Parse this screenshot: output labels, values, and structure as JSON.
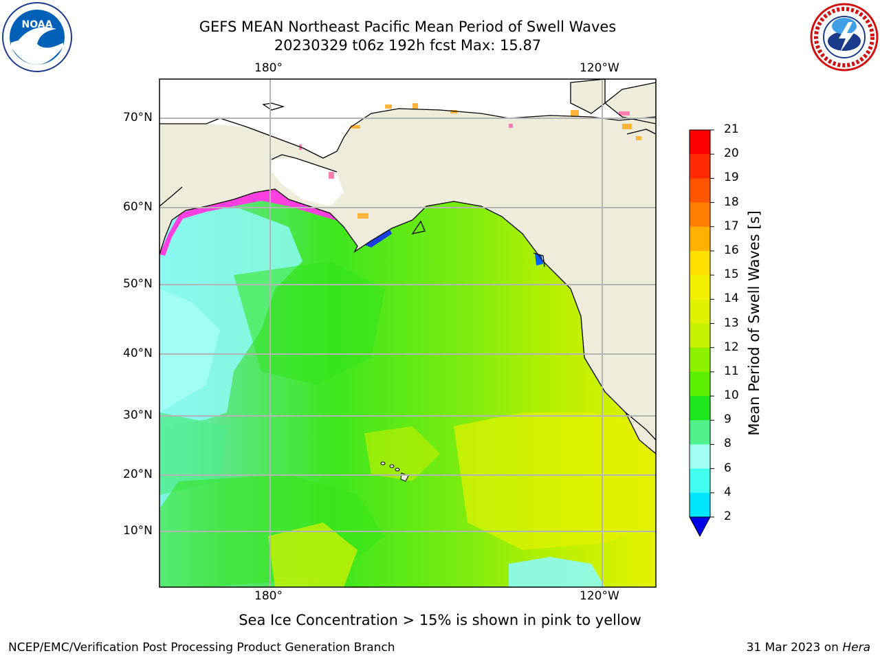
{
  "title": {
    "line1": "GEFS MEAN Northeast Pacific Mean Period of Swell Waves",
    "line2": "20230329 t06z 192h fcst   Max: 15.87"
  },
  "map": {
    "lon_labels": [
      "180°",
      "120°W"
    ],
    "lat_labels": [
      "70°N",
      "60°N",
      "50°N",
      "40°N",
      "30°N",
      "20°N",
      "10°N"
    ]
  },
  "colorbar": {
    "label": "Mean Period of Swell Waves [s]",
    "ticks": [
      "21",
      "20",
      "19",
      "18",
      "17",
      "16",
      "15",
      "14",
      "13",
      "12",
      "11",
      "10",
      "9",
      "8",
      "6",
      "4",
      "2"
    ],
    "colors": [
      "#ff0000",
      "#ff2a00",
      "#ff5400",
      "#ff8000",
      "#ffb000",
      "#ffe000",
      "#f2f200",
      "#e1f200",
      "#c4f200",
      "#8cf200",
      "#5af000",
      "#1ee61e",
      "#50f08c",
      "#a0fff0",
      "#40fff0",
      "#00e6ff",
      "#00a0ff",
      "#0060ff"
    ],
    "extend_color": "#0000e6"
  },
  "caption": "Sea Ice Concentration > 15% is shown in pink to yellow",
  "footer": {
    "left": "NCEP/EMC/Verification Post Processing Product Generation Branch",
    "right_date": "31 Mar 2023 on",
    "right_host": "Hera"
  },
  "logos": {
    "left": "NOAA",
    "right": "NATIONAL WEATHER SERVICE"
  },
  "colors": {
    "land": "#efecdc",
    "grid": "#b4b4b4"
  }
}
